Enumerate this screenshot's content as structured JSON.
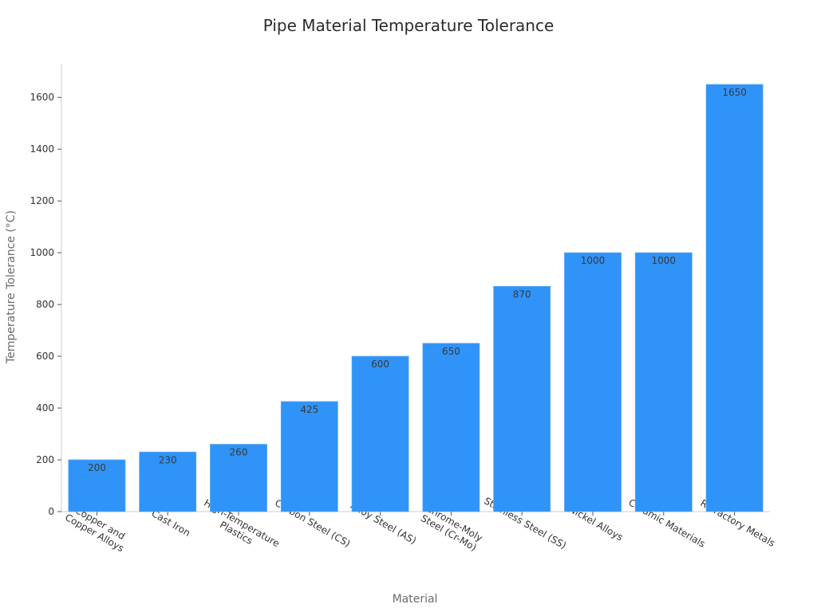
{
  "chart_data": {
    "type": "bar",
    "title": "Pipe Material Temperature Tolerance",
    "xlabel": "Material",
    "ylabel": "Temperature Tolerance (°C)",
    "categories": [
      [
        "Copper and",
        "Copper Alloys"
      ],
      [
        "Cast Iron"
      ],
      [
        "High-Temperature",
        "Plastics"
      ],
      [
        "Carbon Steel (CS)"
      ],
      [
        "Alloy Steel (AS)"
      ],
      [
        "Chrome-Moly",
        "Steel (Cr-Mo)"
      ],
      [
        "Stainless Steel (SS)"
      ],
      [
        "Nickel Alloys"
      ],
      [
        "Ceramic Materials"
      ],
      [
        "Refractory Metals"
      ]
    ],
    "values": [
      200,
      230,
      260,
      425,
      600,
      650,
      870,
      1000,
      1000,
      1650
    ],
    "ylim": [
      0,
      1730
    ],
    "yticks": [
      0,
      200,
      400,
      600,
      800,
      1000,
      1200,
      1400,
      1600
    ],
    "bar_color": "#2f93f7",
    "grid": false
  }
}
